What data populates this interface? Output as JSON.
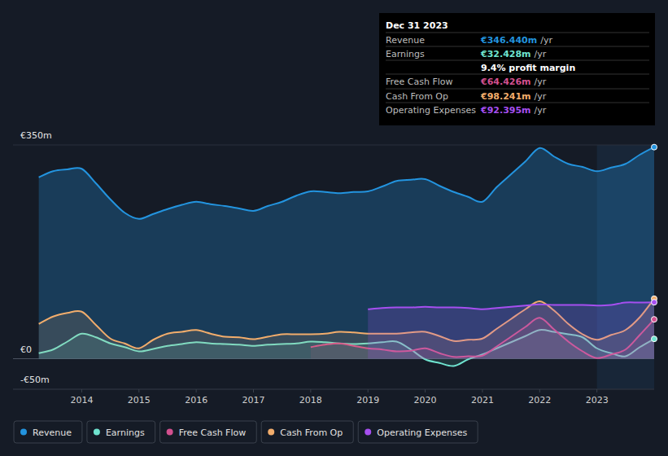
{
  "chart_data": {
    "type": "area",
    "x": [
      2013.25,
      2013.5,
      2013.75,
      2014,
      2014.25,
      2014.5,
      2014.75,
      2015,
      2015.25,
      2015.5,
      2015.75,
      2016,
      2016.25,
      2016.5,
      2016.75,
      2017,
      2017.25,
      2017.5,
      2017.75,
      2018,
      2018.25,
      2018.5,
      2018.75,
      2019,
      2019.25,
      2019.5,
      2019.75,
      2020,
      2020.25,
      2020.5,
      2020.75,
      2021,
      2021.25,
      2021.5,
      2021.75,
      2022,
      2022.25,
      2022.5,
      2022.75,
      2023,
      2023.25,
      2023.5,
      2023.75,
      2024
    ],
    "series": [
      {
        "name": "Revenue",
        "color": "#2394df",
        "values": [
          297,
          307,
          310,
          311,
          287,
          261,
          239,
          229,
          237,
          245,
          252,
          257,
          253,
          250,
          246,
          242,
          250,
          257,
          267,
          274,
          273,
          271,
          273,
          274,
          282,
          291,
          293,
          294,
          283,
          273,
          265,
          257,
          281,
          302,
          323,
          345,
          331,
          319,
          314,
          307,
          313,
          319,
          334,
          346.44
        ]
      },
      {
        "name": "Earnings",
        "color": "#6fe3cf",
        "values": [
          9,
          15,
          28,
          41,
          35,
          25,
          19,
          12,
          16,
          21,
          24,
          27,
          25,
          24,
          23,
          21,
          23,
          24,
          25,
          28,
          27,
          25,
          24,
          25,
          27,
          28,
          15,
          -1,
          -7,
          -12,
          -1,
          7,
          17,
          27,
          37,
          47,
          44,
          40,
          35,
          17,
          9,
          4,
          19,
          32.43
        ]
      },
      {
        "name": "Free Cash Flow",
        "color": "#d3508f",
        "values": [
          null,
          null,
          null,
          null,
          null,
          null,
          null,
          null,
          null,
          null,
          null,
          null,
          null,
          null,
          null,
          null,
          null,
          null,
          null,
          19,
          23,
          25,
          21,
          17,
          15,
          12,
          13,
          17,
          9,
          3,
          4,
          5,
          20,
          36,
          52,
          67,
          48,
          28,
          12,
          1,
          7,
          15,
          39,
          64.43
        ]
      },
      {
        "name": "Cash From Op",
        "color": "#f2ad6c",
        "values": [
          57,
          69,
          75,
          77,
          55,
          33,
          25,
          17,
          31,
          41,
          44,
          47,
          41,
          36,
          35,
          32,
          36,
          40,
          40,
          40,
          41,
          44,
          43,
          41,
          41,
          41,
          43,
          44,
          37,
          29,
          31,
          33,
          49,
          65,
          81,
          94,
          79,
          57,
          40,
          31,
          39,
          47,
          68,
          98.24
        ]
      },
      {
        "name": "Operating Expenses",
        "color": "#a64ff0",
        "values": [
          null,
          null,
          null,
          null,
          null,
          null,
          null,
          null,
          null,
          null,
          null,
          null,
          null,
          null,
          null,
          null,
          null,
          null,
          null,
          null,
          null,
          null,
          null,
          81,
          83,
          84,
          84,
          85,
          84,
          84,
          83,
          81,
          83,
          85,
          87,
          89,
          88,
          88,
          88,
          87,
          88,
          92,
          92,
          92.4
        ]
      }
    ],
    "xlim": [
      2012.8,
      2024.0
    ],
    "xticks": [
      2014,
      2015,
      2016,
      2017,
      2018,
      2019,
      2020,
      2021,
      2022,
      2023
    ],
    "ylim": [
      -50,
      350
    ],
    "yticks": [
      {
        "value": -50,
        "label": "-€50m"
      },
      {
        "value": 0,
        "label": "€0"
      },
      {
        "value": 350,
        "label": "€350m"
      }
    ],
    "grid": true,
    "legend": "bottom-left",
    "tooltip": {
      "title": "Dec 31 2023",
      "rows": [
        {
          "label": "Revenue",
          "value": "€346.440m",
          "unit": "/yr"
        },
        {
          "label": "Earnings",
          "value": "€32.428m",
          "unit": "/yr"
        },
        {
          "label": "Free Cash Flow",
          "value": "€64.426m",
          "unit": "/yr"
        },
        {
          "label": "Cash From Op",
          "value": "€98.241m",
          "unit": "/yr"
        },
        {
          "label": "Operating Expenses",
          "value": "€92.395m",
          "unit": "/yr"
        }
      ],
      "note": "9.4% profit margin"
    }
  }
}
